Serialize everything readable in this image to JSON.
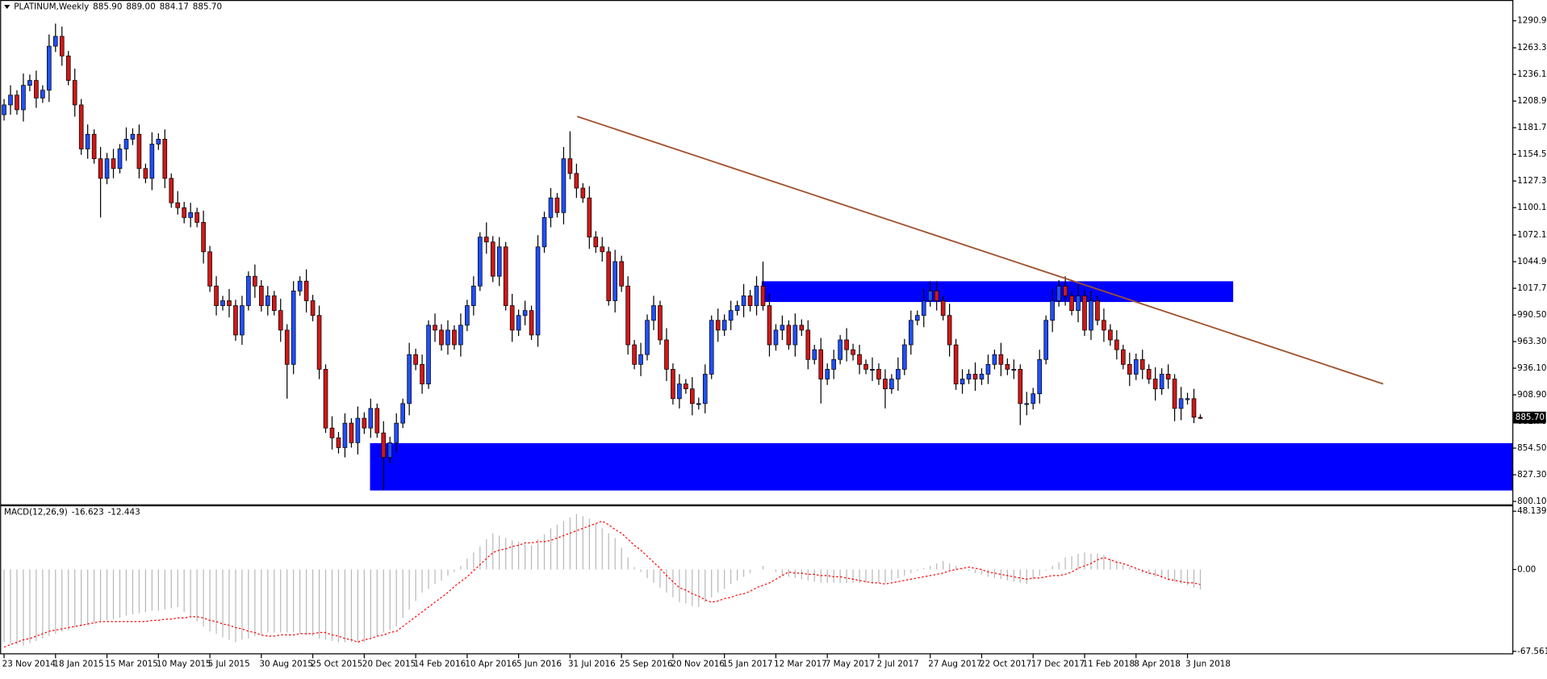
{
  "chart_data": {
    "type": "candlestick",
    "header_symbol": "PLATINUM,Weekly",
    "header_ohlc": [
      "885.90",
      "889.00",
      "884.17",
      "885.70"
    ],
    "up_color": "#2050ff",
    "down_color": "#d01818",
    "ylim": [
      797.1,
      1310.1
    ],
    "yticks": [
      {
        "value": 1290.9,
        "label": "1290.90"
      },
      {
        "value": 1263.3,
        "label": "1263.30"
      },
      {
        "value": 1236.1,
        "label": "1236.10"
      },
      {
        "value": 1208.9,
        "label": "1208.90"
      },
      {
        "value": 1181.7,
        "label": "1181.70"
      },
      {
        "value": 1154.5,
        "label": "1154.50"
      },
      {
        "value": 1127.3,
        "label": "1127.30"
      },
      {
        "value": 1100.1,
        "label": "1100.10"
      },
      {
        "value": 1072.1,
        "label": "1072.10"
      },
      {
        "value": 1044.9,
        "label": "1044.90"
      },
      {
        "value": 1017.7,
        "label": "1017.70"
      },
      {
        "value": 990.5,
        "label": "990.50"
      },
      {
        "value": 963.3,
        "label": "963.30"
      },
      {
        "value": 936.1,
        "label": "936.10"
      },
      {
        "value": 908.9,
        "label": "908.90"
      },
      {
        "value": 881.7,
        "label": "881.70"
      },
      {
        "value": 854.5,
        "label": "854.50"
      },
      {
        "value": 827.3,
        "label": "827.30"
      },
      {
        "value": 800.1,
        "label": "800.10"
      }
    ],
    "categories": [
      "23 Nov 2014",
      null,
      null,
      null,
      null,
      null,
      null,
      null,
      "18 Jan 2015",
      null,
      null,
      null,
      null,
      null,
      null,
      null,
      "15 Mar 2015",
      null,
      null,
      null,
      null,
      null,
      null,
      null,
      "10 May 2015",
      null,
      null,
      null,
      null,
      null,
      null,
      null,
      "5 Jul 2015",
      null,
      null,
      null,
      null,
      null,
      null,
      null,
      "30 Aug 2015",
      null,
      null,
      null,
      null,
      null,
      null,
      null,
      "25 Oct 2015",
      null,
      null,
      null,
      null,
      null,
      null,
      null,
      "20 Dec 2015",
      null,
      null,
      null,
      null,
      null,
      null,
      null,
      "14 Feb 2016",
      null,
      null,
      null,
      null,
      null,
      null,
      null,
      "10 Apr 2016",
      null,
      null,
      null,
      null,
      null,
      null,
      null,
      "5 Jun 2016",
      null,
      null,
      null,
      null,
      null,
      null,
      null,
      "31 Jul 2016",
      null,
      null,
      null,
      null,
      null,
      null,
      null,
      "25 Sep 2016",
      null,
      null,
      null,
      null,
      null,
      null,
      null,
      "20 Nov 2016",
      null,
      null,
      null,
      null,
      null,
      null,
      null,
      "15 Jan 2017",
      null,
      null,
      null,
      null,
      null,
      null,
      null,
      "12 Mar 2017",
      null,
      null,
      null,
      null,
      null,
      null,
      null,
      "7 May 2017",
      null,
      null,
      null,
      null,
      null,
      null,
      null,
      "2 Jul 2017",
      null,
      null,
      null,
      null,
      null,
      null,
      null,
      "27 Aug 2017",
      null,
      null,
      null,
      null,
      null,
      null,
      null,
      "22 Oct 2017",
      null,
      null,
      null,
      null,
      null,
      null,
      null,
      "17 Dec 2017",
      null,
      null,
      null,
      null,
      null,
      null,
      null,
      "11 Feb 2018",
      null,
      null,
      null,
      null,
      null,
      null,
      null,
      "8 Apr 2018",
      null,
      null,
      null,
      null,
      null,
      null,
      null,
      "3 Jun 2018",
      null,
      null
    ],
    "open": [
      1195,
      1205,
      1215,
      1200,
      1225,
      1230,
      1212,
      1220,
      1265,
      1275,
      1255,
      1230,
      1205,
      1160,
      1175,
      1150,
      1130,
      1150,
      1140,
      1160,
      1170,
      1175,
      1140,
      1130,
      1165,
      1170,
      1130,
      1105,
      1100,
      1090,
      1095,
      1085,
      1055,
      1020,
      1000,
      1005,
      1000,
      970,
      1000,
      1030,
      1020,
      1000,
      1010,
      995,
      975,
      940,
      1015,
      1025,
      1005,
      990,
      935,
      875,
      865,
      855,
      880,
      860,
      885,
      875,
      895,
      870,
      845,
      860,
      880,
      900,
      950,
      940,
      920,
      980,
      975,
      960,
      975,
      960,
      980,
      1000,
      1020,
      1070,
      1065,
      1030,
      1060,
      1000,
      975,
      990,
      995,
      970,
      1060,
      1090,
      1110,
      1095,
      1150,
      1135,
      1120,
      1110,
      1070,
      1060,
      1055,
      1005,
      1045,
      1020,
      960,
      940,
      950,
      985,
      1000,
      965,
      935,
      905,
      920,
      915,
      900,
      900,
      930,
      985,
      975,
      985,
      995,
      1000,
      1010,
      1000,
      1020,
      1000,
      960,
      975,
      980,
      960,
      980,
      975,
      945,
      955,
      925,
      935,
      945,
      965,
      955,
      950,
      940,
      935,
      935,
      925,
      915,
      925,
      935,
      960,
      985,
      990,
      1005,
      1015,
      1005,
      990,
      960,
      920,
      925,
      930,
      925,
      930,
      940,
      950,
      940,
      935,
      935,
      900,
      900,
      910,
      945,
      985,
      1005,
      1020,
      1010,
      995,
      1010,
      975,
      1005,
      985,
      975,
      965,
      955,
      940,
      930,
      945,
      935,
      925,
      915,
      930,
      925,
      895,
      905,
      905,
      885.9
    ],
    "high": [
      1211,
      1225,
      1220,
      1237,
      1236,
      1240,
      1225,
      1277,
      1288,
      1285,
      1260,
      1242,
      1211,
      1185,
      1180,
      1162,
      1156,
      1160,
      1165,
      1182,
      1181,
      1185,
      1145,
      1177,
      1176,
      1180,
      1135,
      1117,
      1106,
      1105,
      1100,
      1097,
      1061,
      1030,
      1010,
      1017,
      1006,
      1010,
      1035,
      1042,
      1026,
      1020,
      1015,
      1007,
      981,
      1025,
      1030,
      1037,
      1011,
      1000,
      940,
      887,
      871,
      890,
      885,
      897,
      891,
      905,
      900,
      882,
      866,
      890,
      905,
      962,
      956,
      950,
      985,
      992,
      981,
      985,
      980,
      992,
      1006,
      1030,
      1075,
      1085,
      1071,
      1070,
      1065,
      1012,
      996,
      1005,
      1000,
      1072,
      1096,
      1120,
      1115,
      1162,
      1178,
      1145,
      1125,
      1122,
      1076,
      1070,
      1060,
      1057,
      1051,
      1030,
      965,
      962,
      991,
      1010,
      1005,
      977,
      941,
      930,
      925,
      927,
      906,
      940,
      990,
      997,
      991,
      1005,
      1005,
      1022,
      1016,
      1030,
      1045,
      1012,
      981,
      990,
      985,
      992,
      986,
      985,
      960,
      967,
      941,
      955,
      970,
      977,
      961,
      960,
      945,
      947,
      941,
      935,
      930,
      947,
      966,
      995,
      995,
      1017,
      1025,
      1025,
      1010,
      1002,
      966,
      935,
      935,
      942,
      936,
      950,
      955,
      962,
      946,
      945,
      940,
      912,
      916,
      955,
      990,
      1017,
      1026,
      1030,
      1015,
      1022,
      1016,
      1015,
      1010,
      997,
      981,
      975,
      960,
      952,
      951,
      955,
      940,
      937,
      936,
      940,
      930,
      917,
      911,
      915,
      889
    ],
    "low": [
      1189,
      1195,
      1195,
      1188,
      1219,
      1202,
      1207,
      1208,
      1259,
      1245,
      1225,
      1193,
      1154,
      1150,
      1145,
      1090,
      1124,
      1130,
      1135,
      1148,
      1164,
      1130,
      1125,
      1118,
      1159,
      1120,
      1100,
      1093,
      1084,
      1080,
      1080,
      1043,
      1014,
      990,
      995,
      988,
      964,
      960,
      995,
      1008,
      994,
      990,
      990,
      963,
      905,
      930,
      1010,
      993,
      984,
      925,
      870,
      853,
      849,
      845,
      855,
      848,
      869,
      865,
      865,
      812,
      839,
      850,
      875,
      888,
      934,
      910,
      915,
      963,
      954,
      950,
      955,
      948,
      974,
      990,
      1015,
      1053,
      1024,
      1020,
      995,
      963,
      969,
      980,
      965,
      958,
      1054,
      1080,
      1090,
      1083,
      1129,
      1110,
      1105,
      1058,
      1054,
      1045,
      1000,
      993,
      1014,
      950,
      935,
      928,
      944,
      975,
      960,
      923,
      899,
      895,
      910,
      888,
      894,
      890,
      925,
      963,
      969,
      975,
      990,
      988,
      994,
      990,
      995,
      948,
      954,
      965,
      955,
      948,
      969,
      935,
      940,
      900,
      919,
      925,
      940,
      943,
      944,
      930,
      930,
      923,
      919,
      895,
      910,
      913,
      929,
      950,
      980,
      978,
      999,
      995,
      985,
      948,
      914,
      910,
      920,
      913,
      919,
      920,
      935,
      928,
      929,
      925,
      878,
      888,
      894,
      900,
      940,
      973,
      999,
      1000,
      990,
      983,
      969,
      965,
      980,
      963,
      959,
      945,
      935,
      918,
      924,
      925,
      920,
      903,
      909,
      915,
      882,
      883,
      899,
      880,
      884.17
    ],
    "close": [
      1205,
      1215,
      1200,
      1225,
      1230,
      1212,
      1220,
      1265,
      1275,
      1255,
      1230,
      1205,
      1160,
      1175,
      1150,
      1130,
      1150,
      1140,
      1160,
      1170,
      1175,
      1140,
      1130,
      1165,
      1170,
      1130,
      1105,
      1100,
      1090,
      1095,
      1085,
      1055,
      1020,
      1000,
      1005,
      1000,
      970,
      1000,
      1030,
      1020,
      1000,
      1010,
      995,
      975,
      940,
      1015,
      1025,
      1005,
      990,
      935,
      875,
      865,
      855,
      880,
      860,
      885,
      875,
      895,
      870,
      845,
      860,
      880,
      900,
      950,
      940,
      920,
      980,
      975,
      960,
      975,
      960,
      980,
      1000,
      1020,
      1070,
      1065,
      1030,
      1060,
      1000,
      975,
      990,
      995,
      970,
      1060,
      1090,
      1110,
      1095,
      1150,
      1135,
      1120,
      1110,
      1070,
      1060,
      1055,
      1005,
      1045,
      1020,
      960,
      940,
      950,
      985,
      1000,
      965,
      935,
      905,
      920,
      915,
      900,
      900,
      930,
      985,
      975,
      985,
      995,
      1000,
      1010,
      1000,
      1020,
      1000,
      960,
      975,
      980,
      960,
      980,
      975,
      945,
      955,
      925,
      935,
      945,
      965,
      955,
      950,
      940,
      935,
      935,
      925,
      915,
      925,
      935,
      960,
      985,
      990,
      1005,
      1015,
      1005,
      990,
      960,
      920,
      925,
      930,
      925,
      930,
      940,
      950,
      940,
      935,
      935,
      900,
      900,
      910,
      945,
      985,
      1005,
      1020,
      1010,
      995,
      1010,
      975,
      1005,
      985,
      975,
      965,
      955,
      940,
      930,
      945,
      935,
      925,
      915,
      930,
      925,
      895,
      905,
      905,
      886,
      885.7
    ],
    "macd": {
      "type": "macd",
      "name": "MACD(12,26,9)",
      "hist_color": "#b8b8b8",
      "signal_color": "#ff0000",
      "ylim": [
        -69.2,
        52.2
      ],
      "yticks": [
        48.139,
        {
          "value": 0,
          "label": "0.00"
        },
        -67.561
      ],
      "values": [
        -60,
        -61,
        -62,
        -63,
        -61,
        -59,
        -57,
        -55,
        -53,
        -51,
        -50,
        -48,
        -47,
        -46,
        -44,
        -43,
        -42,
        -41,
        -40,
        -38,
        -37,
        -36,
        -35,
        -34,
        -34,
        -33,
        -32,
        -31,
        -35,
        -39,
        -43,
        -47,
        -51,
        -53,
        -56,
        -58,
        -60,
        -58,
        -57,
        -55,
        -54,
        -52,
        -52,
        -52,
        -52,
        -52,
        -53,
        -54,
        -55,
        -57,
        -58,
        -59,
        -60,
        -60,
        -60,
        -60,
        -60,
        -57,
        -55,
        -52,
        -50,
        -47,
        -40,
        -33,
        -26,
        -19,
        -16,
        -12,
        -9,
        -5,
        -2,
        3,
        9,
        14,
        19,
        25,
        30,
        28,
        26,
        24,
        23,
        21,
        20,
        25,
        29,
        34,
        37,
        40,
        43,
        46,
        44,
        42,
        38,
        34,
        30,
        26,
        18,
        10,
        2,
        -2,
        -7,
        -11,
        -15,
        -19,
        -23,
        -27,
        -28,
        -30,
        -31,
        -27,
        -23,
        -19,
        -16,
        -12,
        -9,
        -6,
        -3,
        0,
        3,
        0,
        -2,
        -5,
        -6,
        -7,
        -8,
        -9,
        -10,
        -11,
        -11,
        -11,
        -11,
        -11,
        -11,
        -11,
        -11,
        -11,
        -11,
        -11,
        -9,
        -7,
        -5,
        -3,
        -1,
        1,
        3,
        5,
        7,
        5,
        3,
        1,
        -1,
        -3,
        -4,
        -6,
        -7,
        -8,
        -9,
        -10,
        -11,
        -12,
        -8,
        -5,
        -1,
        3,
        6,
        10,
        11,
        13,
        14,
        13,
        13,
        12,
        9,
        7,
        4,
        2,
        -1,
        -3,
        -4,
        -6,
        -7,
        -9,
        -10,
        -12,
        -13,
        -15,
        -16.623
      ],
      "signal": [
        -64,
        -62,
        -60,
        -58,
        -57,
        -55,
        -53,
        -51,
        -50,
        -49,
        -48,
        -47,
        -46,
        -45,
        -44,
        -43,
        -43,
        -43,
        -43,
        -43,
        -43,
        -43,
        -43,
        -42,
        -42,
        -41,
        -41,
        -40,
        -40,
        -39,
        -39,
        -40,
        -42,
        -43,
        -45,
        -46,
        -48,
        -49,
        -51,
        -52,
        -54,
        -55,
        -55,
        -54,
        -54,
        -54,
        -53,
        -53,
        -53,
        -52,
        -52,
        -54,
        -55,
        -57,
        -58,
        -60,
        -58,
        -57,
        -55,
        -54,
        -52,
        -51,
        -47,
        -43,
        -39,
        -35,
        -31,
        -27,
        -23,
        -19,
        -14,
        -10,
        -6,
        -1,
        4,
        9,
        14,
        16,
        17,
        19,
        20,
        22,
        22,
        23,
        23,
        24,
        26,
        28,
        30,
        32,
        34,
        36,
        38,
        40,
        37,
        33,
        30,
        25,
        20,
        16,
        11,
        6,
        1,
        -5,
        -10,
        -15,
        -17,
        -20,
        -22,
        -25,
        -27,
        -26,
        -24,
        -23,
        -21,
        -20,
        -18,
        -15,
        -13,
        -11,
        -8,
        -5,
        -2,
        -3,
        -3,
        -4,
        -4,
        -5,
        -5,
        -6,
        -6,
        -7,
        -8,
        -9,
        -10,
        -11,
        -11,
        -12,
        -11,
        -10,
        -9,
        -8,
        -7,
        -6,
        -5,
        -4,
        -3,
        -1,
        0,
        1,
        2,
        1,
        0,
        -2,
        -3,
        -4,
        -5,
        -6,
        -7,
        -8,
        -7,
        -7,
        -6,
        -5,
        -5,
        -4,
        -2,
        1,
        3,
        5,
        8,
        10,
        8,
        6,
        5,
        3,
        1,
        -1,
        -3,
        -4,
        -6,
        -8,
        -9,
        -10,
        -11,
        -11,
        -12.443
      ]
    }
  }
}
